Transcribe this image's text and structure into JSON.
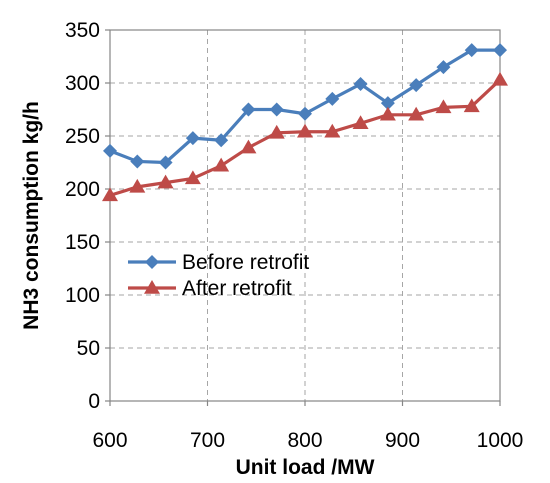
{
  "chart_data": {
    "type": "line",
    "xlabel": "Unit load /MW",
    "ylabel": "NH3 consumption kg/h",
    "xlim": [
      600,
      1000
    ],
    "ylim": [
      0,
      350
    ],
    "xticks": [
      600,
      700,
      800,
      900,
      1000
    ],
    "yticks": [
      0,
      50,
      100,
      150,
      200,
      250,
      300,
      350
    ],
    "grid": true,
    "legend_position": "center-left",
    "series": [
      {
        "name": "Before retrofit",
        "color": "#4a7ebb",
        "marker": "diamond",
        "x": [
          600,
          628,
          657,
          685,
          714,
          742,
          771,
          800,
          828,
          857,
          885,
          914,
          942,
          971,
          1000
        ],
        "y": [
          236,
          226,
          225,
          248,
          246,
          275,
          275,
          271,
          285,
          299,
          281,
          298,
          315,
          331,
          331
        ]
      },
      {
        "name": "After retrofit",
        "color": "#be4b48",
        "marker": "triangle",
        "x": [
          600,
          628,
          657,
          685,
          714,
          742,
          771,
          800,
          828,
          857,
          885,
          914,
          942,
          971,
          1000
        ],
        "y": [
          194,
          202,
          206,
          210,
          222,
          239,
          253,
          254,
          254,
          262,
          270,
          270,
          277,
          278,
          303
        ]
      }
    ]
  }
}
